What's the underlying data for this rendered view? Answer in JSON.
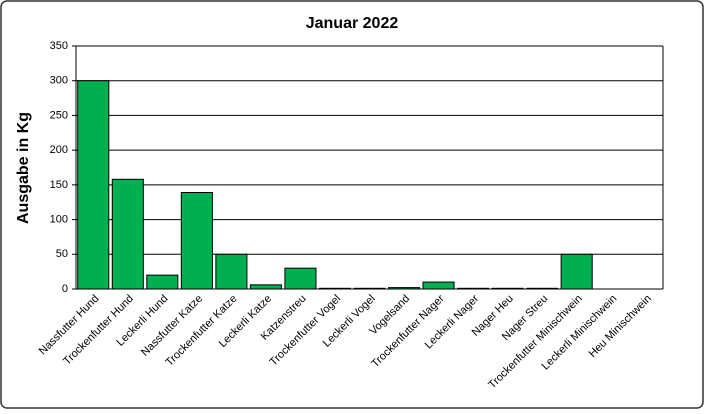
{
  "chart_data": {
    "type": "bar",
    "title": "Januar 2022",
    "y_label": "Ausgabe in Kg",
    "categories": [
      "Nassfutter Hund",
      "Trockenfutter Hund",
      "Leckerli Hund",
      "Nassfutter Katze",
      "Trockenfutter Katze",
      "Leckerli Katze",
      "Katzenstreu",
      "Trockenfutter Vogel",
      "Leckerli Vogel",
      "Vogelsand",
      "Trockenfutter Nager",
      "Leckerli Nager",
      "Nager Heu",
      "Nager Streu",
      "Trockenfutter Minischwein",
      "Leckerli Minischwein",
      "Heu Minischwein"
    ],
    "values": [
      300,
      158,
      20,
      139,
      50,
      6,
      30,
      1,
      1,
      2,
      10,
      1,
      1,
      1,
      50,
      0,
      0
    ],
    "color": "#00b050",
    "ylim": [
      0,
      350
    ],
    "yticks": [
      0,
      50,
      100,
      150,
      200,
      250,
      300,
      350
    ],
    "grid": true
  }
}
